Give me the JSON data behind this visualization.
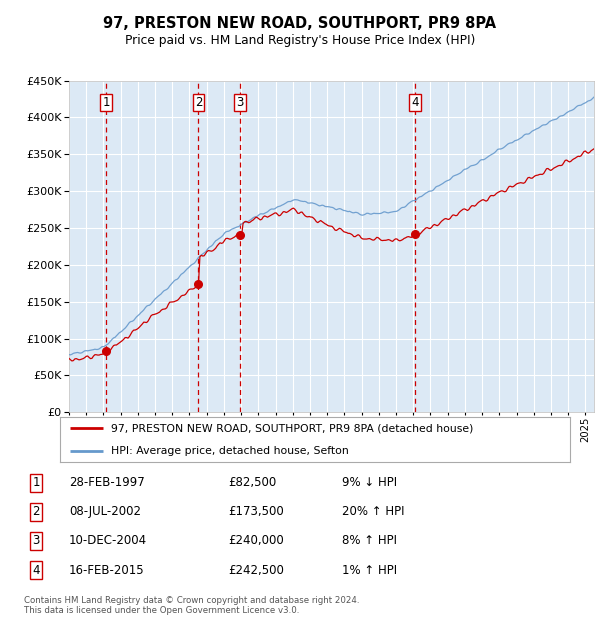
{
  "title": "97, PRESTON NEW ROAD, SOUTHPORT, PR9 8PA",
  "subtitle": "Price paid vs. HM Land Registry's House Price Index (HPI)",
  "y_ticks": [
    0,
    50000,
    100000,
    150000,
    200000,
    250000,
    300000,
    350000,
    400000,
    450000
  ],
  "background_color": "#dce9f5",
  "grid_color": "#ffffff",
  "sale_points": [
    {
      "year": 1997.15,
      "price": 82500,
      "label": "1"
    },
    {
      "year": 2002.52,
      "price": 173500,
      "label": "2"
    },
    {
      "year": 2004.95,
      "price": 240000,
      "label": "3"
    },
    {
      "year": 2015.12,
      "price": 242500,
      "label": "4"
    }
  ],
  "table_rows": [
    {
      "num": "1",
      "date": "28-FEB-1997",
      "price": "£82,500",
      "hpi": "9% ↓ HPI"
    },
    {
      "num": "2",
      "date": "08-JUL-2002",
      "price": "£173,500",
      "hpi": "20% ↑ HPI"
    },
    {
      "num": "3",
      "date": "10-DEC-2004",
      "price": "£240,000",
      "hpi": "8% ↑ HPI"
    },
    {
      "num": "4",
      "date": "16-FEB-2015",
      "price": "£242,500",
      "hpi": "1% ↑ HPI"
    }
  ],
  "legend_line1": "97, PRESTON NEW ROAD, SOUTHPORT, PR9 8PA (detached house)",
  "legend_line2": "HPI: Average price, detached house, Sefton",
  "footer": "Contains HM Land Registry data © Crown copyright and database right 2024.\nThis data is licensed under the Open Government Licence v3.0.",
  "hpi_line_color": "#6699cc",
  "sale_line_color": "#cc0000",
  "dashed_line_color": "#cc0000",
  "label_box_color": "#cc0000"
}
